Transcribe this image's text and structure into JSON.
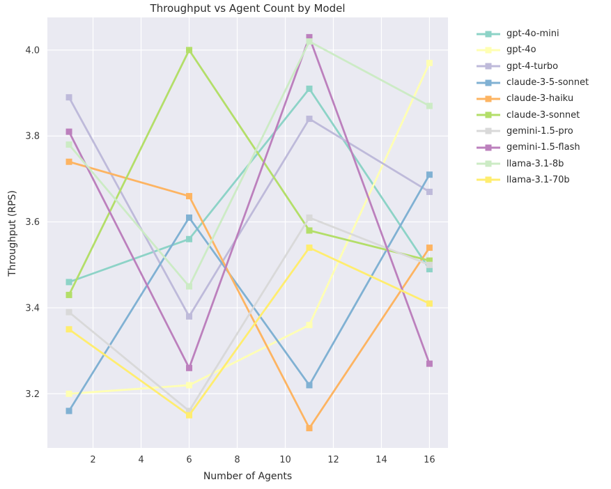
{
  "chart_data": {
    "type": "line",
    "title": "Throughput vs Agent Count by Model",
    "xlabel": "Number of Agents",
    "ylabel": "Throughput (RPS)",
    "x": [
      1,
      6,
      11,
      16
    ],
    "xticks": [
      2,
      4,
      6,
      8,
      10,
      12,
      14,
      16
    ],
    "yticks": [
      3.2,
      3.4,
      3.6,
      3.8,
      4.0
    ],
    "xlim": [
      0.1,
      16.77
    ],
    "ylim": [
      3.074,
      4.076
    ],
    "grid": true,
    "legend_position": "right-top",
    "marker": "square",
    "styles": {
      "plot_bg": "#eaeaf2",
      "grid_color": "#ffffff",
      "title_color": "#2b2b2b",
      "tick_color": "#3a3a3a",
      "line_width": 2.8,
      "marker_size": 9
    },
    "series": [
      {
        "name": "gpt-4o-mini",
        "color": "#8dd3c7",
        "values": [
          3.46,
          3.56,
          3.91,
          3.49
        ]
      },
      {
        "name": "gpt-4o",
        "color": "#ffffb3",
        "values": [
          3.2,
          3.22,
          3.36,
          3.97
        ]
      },
      {
        "name": "gpt-4-turbo",
        "color": "#bebada",
        "values": [
          3.89,
          3.38,
          3.84,
          3.67
        ]
      },
      {
        "name": "claude-3-5-sonnet",
        "color": "#80b1d3",
        "values": [
          3.16,
          3.61,
          3.22,
          3.71
        ]
      },
      {
        "name": "claude-3-haiku",
        "color": "#fdb462",
        "values": [
          3.74,
          3.66,
          3.12,
          3.54
        ]
      },
      {
        "name": "claude-3-sonnet",
        "color": "#b3de69",
        "values": [
          3.43,
          4.0,
          3.58,
          3.51
        ]
      },
      {
        "name": "gemini-1.5-pro",
        "color": "#d9d9d9",
        "values": [
          3.39,
          3.16,
          3.61,
          3.5
        ]
      },
      {
        "name": "gemini-1.5-flash",
        "color": "#bc80bd",
        "values": [
          3.81,
          3.26,
          4.03,
          3.27
        ]
      },
      {
        "name": "llama-3.1-8b",
        "color": "#ccebc5",
        "values": [
          3.78,
          3.45,
          4.02,
          3.87
        ]
      },
      {
        "name": "llama-3.1-70b",
        "color": "#ffed6f",
        "values": [
          3.35,
          3.15,
          3.54,
          3.41
        ]
      }
    ]
  }
}
